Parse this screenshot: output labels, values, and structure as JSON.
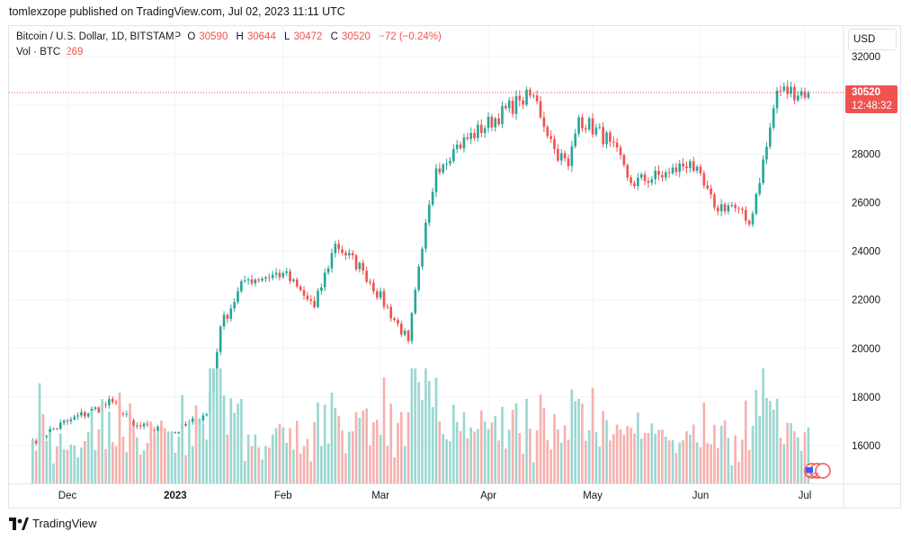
{
  "header": {
    "published": "tomlexzope published on TradingView.com, Jul 02, 2023 11:11 UTC"
  },
  "legend": {
    "symbol": "Bitcoin / U.S. Dollar, 1D, BITSTAMP",
    "o_label": "O",
    "o": "30590",
    "h_label": "H",
    "h": "30644",
    "l_label": "L",
    "l": "30472",
    "c_label": "C",
    "c": "30520",
    "change": "−72 (−0.24%)",
    "vol_label": "Vol · BTC",
    "vol": "269"
  },
  "currency_button": "USD",
  "last_price": {
    "price": "30520",
    "countdown": "12:48:32"
  },
  "branding": "TradingView",
  "colors": {
    "up": "#26a69a",
    "down": "#ef5350",
    "up_vol": "#9ad7d1",
    "down_vol": "#f5b1ae",
    "grid": "#f0f3fa"
  },
  "chart_data": {
    "type": "candlestick",
    "y_ticks": [
      "32000",
      "30000",
      "28000",
      "26000",
      "24000",
      "22000",
      "20000",
      "18000",
      "16000"
    ],
    "ylim": [
      14500,
      33300
    ],
    "x_ticks": [
      "Dec",
      "2023",
      "Feb",
      "Mar",
      "Apr",
      "May",
      "Jun",
      "Jul"
    ],
    "last_price": 30520,
    "keypoints": [
      {
        "date": "Nov 21",
        "close": 16200
      },
      {
        "date": "Dec 01",
        "close": 17000
      },
      {
        "date": "Dec 14",
        "close": 17800
      },
      {
        "date": "Dec 20",
        "close": 16800
      },
      {
        "date": "Jan 01",
        "close": 16550
      },
      {
        "date": "Jan 10",
        "close": 17300
      },
      {
        "date": "Jan 14",
        "close": 20900
      },
      {
        "date": "Jan 21",
        "close": 22800
      },
      {
        "date": "Feb 01",
        "close": 23100
      },
      {
        "date": "Feb 10",
        "close": 21700
      },
      {
        "date": "Feb 16",
        "close": 24300
      },
      {
        "date": "Feb 24",
        "close": 23200
      },
      {
        "date": "Mar 09",
        "close": 20300
      },
      {
        "date": "Mar 13",
        "close": 24100
      },
      {
        "date": "Mar 17",
        "close": 27400
      },
      {
        "date": "Mar 22",
        "close": 28200
      },
      {
        "date": "Apr 10",
        "close": 30200
      },
      {
        "date": "Apr 14",
        "close": 30400
      },
      {
        "date": "Apr 20",
        "close": 28200
      },
      {
        "date": "Apr 24",
        "close": 27500
      },
      {
        "date": "Apr 27",
        "close": 29500
      },
      {
        "date": "May 06",
        "close": 28500
      },
      {
        "date": "May 12",
        "close": 26800
      },
      {
        "date": "May 23",
        "close": 27200
      },
      {
        "date": "May 29",
        "close": 27700
      },
      {
        "date": "Jun 05",
        "close": 25800
      },
      {
        "date": "Jun 10",
        "close": 25900
      },
      {
        "date": "Jun 15",
        "close": 25100
      },
      {
        "date": "Jun 20",
        "close": 28300
      },
      {
        "date": "Jun 23",
        "close": 30600
      },
      {
        "date": "Jul 02",
        "close": 30520
      }
    ]
  }
}
